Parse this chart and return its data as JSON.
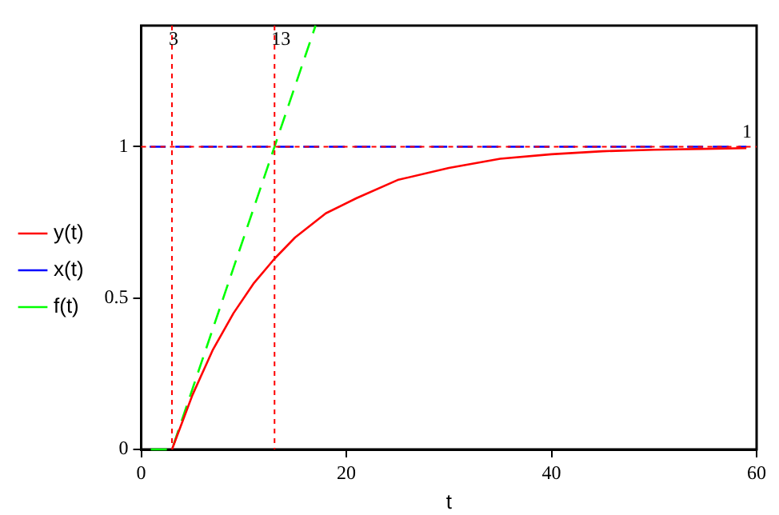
{
  "chart_data": {
    "type": "line",
    "xlabel": "t",
    "series": [
      {
        "name": "y(t)",
        "color": "#ff0000",
        "line_style": "solid",
        "x": [
          3,
          5,
          7,
          9,
          11,
          13,
          15,
          18,
          21,
          25,
          30,
          35,
          40,
          45,
          50,
          55,
          59
        ],
        "values": [
          0,
          0.18,
          0.33,
          0.45,
          0.55,
          0.63,
          0.7,
          0.78,
          0.83,
          0.89,
          0.93,
          0.96,
          0.975,
          0.985,
          0.99,
          0.993,
          0.995
        ]
      },
      {
        "name": "x(t)",
        "color": "#0000ff",
        "line_style": "dashed",
        "x": [
          0,
          59
        ],
        "values": [
          1,
          1
        ]
      },
      {
        "name": "f(t)",
        "color": "#00ff00",
        "line_style": "dashed",
        "x": [
          0,
          3,
          17
        ],
        "values": [
          0,
          0,
          1.4
        ]
      }
    ],
    "xlim": [
      0,
      60
    ],
    "xticks": [
      0,
      20,
      40,
      60
    ],
    "ylim": [
      0,
      1.4
    ],
    "yticks": [
      0,
      0.5,
      1
    ],
    "ref_lines": [
      {
        "axis": "x",
        "value": 3,
        "label": "3",
        "color": "#ff0000",
        "line_style": "dotted"
      },
      {
        "axis": "x",
        "value": 13,
        "label": "13",
        "color": "#ff0000",
        "line_style": "dotted"
      },
      {
        "axis": "y",
        "value": 1,
        "label": "1",
        "color": "#ff0000",
        "line_style": "dotted"
      }
    ],
    "grid": false,
    "legend": "left",
    "marker": "none"
  }
}
